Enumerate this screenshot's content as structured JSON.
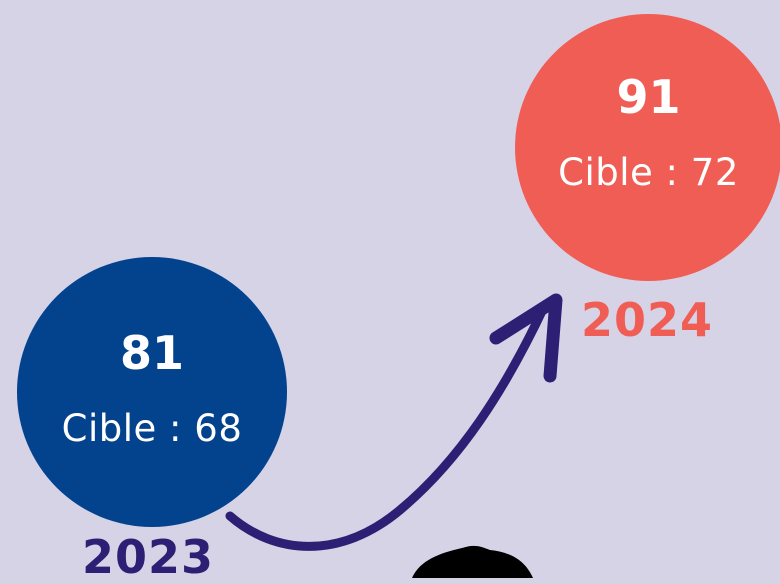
{
  "items": [
    {
      "value": "81",
      "target": "Cible : 68",
      "year": "2023",
      "color": "#03428d"
    },
    {
      "value": "91",
      "target": "Cible : 72",
      "year": "2024",
      "color": "#f05d55"
    }
  ],
  "arrow_color": "#2d2074",
  "background": "#d6d3e7"
}
